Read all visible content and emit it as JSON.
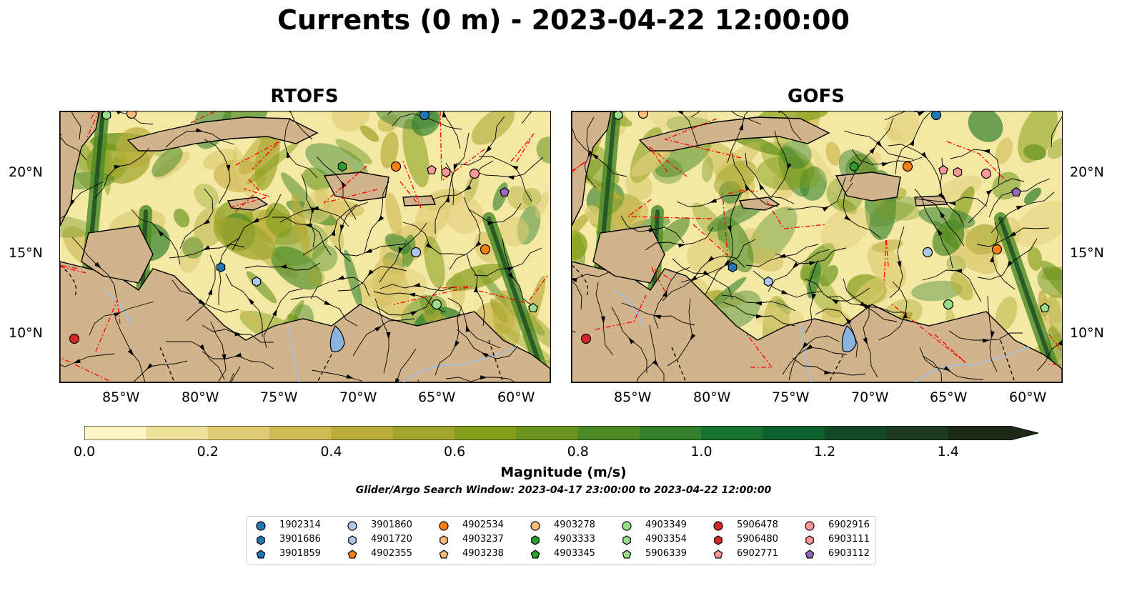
{
  "title": "Currents (0 m) - 2023-04-22 12:00:00",
  "panels": [
    {
      "title": "RTOFS"
    },
    {
      "title": "GOFS"
    }
  ],
  "axes": {
    "lon_ticks": [
      "85°W",
      "80°W",
      "75°W",
      "70°W",
      "65°W",
      "60°W"
    ],
    "lat_ticks": [
      "20°N",
      "15°N",
      "10°N"
    ]
  },
  "colorbar": {
    "label": "Magnitude (m/s)",
    "ticks": [
      "0.0",
      "0.2",
      "0.4",
      "0.6",
      "0.8",
      "1.0",
      "1.2",
      "1.4"
    ],
    "colors": [
      "#fbf6c3",
      "#efe19a",
      "#e0cc76",
      "#cfba55",
      "#b9ad3c",
      "#a1a52c",
      "#859f1c",
      "#69941d",
      "#4d8a26",
      "#32802c",
      "#17712f",
      "#0d5f2c",
      "#144a27",
      "#1b3a20",
      "#1c2a17"
    ]
  },
  "search_window": "Glider/Argo Search Window: 2023-04-17 23:00:00 to 2023-04-22 12:00:00",
  "legend": [
    {
      "id": "1902314",
      "color": "#1f77b4",
      "marker": "circle"
    },
    {
      "id": "3901686",
      "color": "#1f77b4",
      "marker": "hexagon"
    },
    {
      "id": "3901859",
      "color": "#1f77b4",
      "marker": "pentagon"
    },
    {
      "id": "3901860",
      "color": "#aec7e8",
      "marker": "circle"
    },
    {
      "id": "4901720",
      "color": "#aec7e8",
      "marker": "hexagon"
    },
    {
      "id": "4902355",
      "color": "#ff7f0e",
      "marker": "pentagon"
    },
    {
      "id": "4902534",
      "color": "#ff7f0e",
      "marker": "circle"
    },
    {
      "id": "4903237",
      "color": "#ffbb78",
      "marker": "hexagon"
    },
    {
      "id": "4903238",
      "color": "#ffbb78",
      "marker": "pentagon"
    },
    {
      "id": "4903278",
      "color": "#ffbb78",
      "marker": "circle"
    },
    {
      "id": "4903333",
      "color": "#2ca02c",
      "marker": "hexagon"
    },
    {
      "id": "4903345",
      "color": "#2ca02c",
      "marker": "pentagon"
    },
    {
      "id": "4903349",
      "color": "#98df8a",
      "marker": "circle"
    },
    {
      "id": "4903354",
      "color": "#98df8a",
      "marker": "hexagon"
    },
    {
      "id": "5906339",
      "color": "#98df8a",
      "marker": "pentagon"
    },
    {
      "id": "5906478",
      "color": "#d62728",
      "marker": "circle"
    },
    {
      "id": "5906480",
      "color": "#d62728",
      "marker": "hexagon"
    },
    {
      "id": "6902771",
      "color": "#ff9896",
      "marker": "pentagon"
    },
    {
      "id": "6902916",
      "color": "#ff9896",
      "marker": "circle"
    },
    {
      "id": "6903111",
      "color": "#ff9896",
      "marker": "hexagon"
    },
    {
      "id": "6903112",
      "color": "#9467bd",
      "marker": "pentagon"
    }
  ],
  "map_colors": {
    "land": "#d2b48c",
    "lake": "#8ab4e0",
    "ocean_base": "#f3e8a4",
    "strong": "#4a8a26",
    "very_strong": "#1b4a22",
    "stream": "#000000",
    "eez": "#ff0000",
    "border": "#000000",
    "river": "#a6bddb"
  }
}
